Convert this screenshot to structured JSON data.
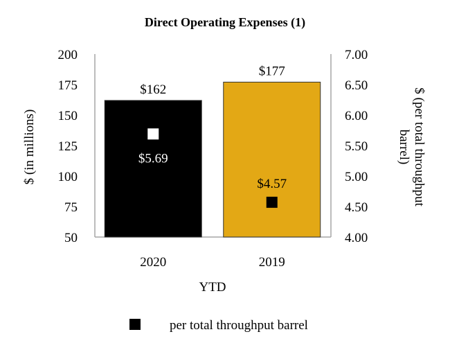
{
  "chart_data": {
    "type": "bar",
    "title": "Direct Operating Expenses (1)",
    "xlabel": "YTD",
    "ylabel": "$ (in millions)",
    "y2label": [
      "$ (per total throughput",
      "barrel)"
    ],
    "categories": [
      "2020",
      "2019"
    ],
    "series": [
      {
        "name": "$ (in millions)",
        "type": "bar",
        "axis": "left",
        "values": [
          162,
          177
        ],
        "labels": [
          "$162",
          "$177"
        ],
        "colors": [
          "#000000",
          "#E3A815"
        ]
      },
      {
        "name": "per total throughput barrel",
        "type": "scatter",
        "axis": "right",
        "values": [
          5.69,
          4.57
        ],
        "labels": [
          "$5.69",
          "$4.57"
        ],
        "colors": [
          "#FFFFFF",
          "#000000"
        ]
      }
    ],
    "ylim": [
      50,
      200
    ],
    "yticks": [
      "50",
      "75",
      "100",
      "125",
      "150",
      "175",
      "200"
    ],
    "y2lim": [
      4.0,
      7.0
    ],
    "y2ticks": [
      "4.00",
      "4.50",
      "5.00",
      "5.50",
      "6.00",
      "6.50",
      "7.00"
    ],
    "grid": false,
    "legend": {
      "position": "bottom",
      "entries": [
        "per total throughput barrel"
      ]
    }
  }
}
